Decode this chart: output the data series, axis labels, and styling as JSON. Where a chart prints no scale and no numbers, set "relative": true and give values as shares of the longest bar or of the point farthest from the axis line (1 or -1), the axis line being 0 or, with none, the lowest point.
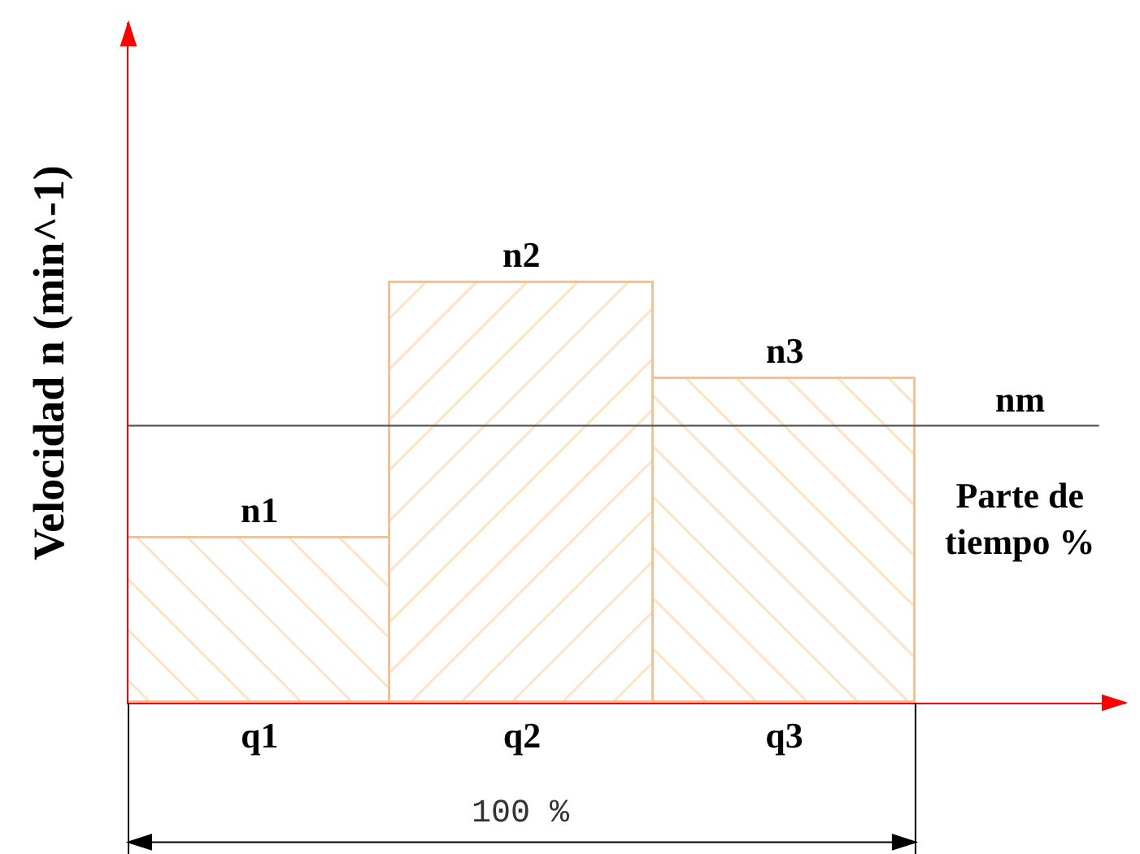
{
  "chart_data": {
    "type": "bar",
    "relative": true,
    "categories": [
      "q1",
      "q2",
      "q3"
    ],
    "values": [
      0.39,
      1,
      0.77
    ],
    "color": "#ffbf80",
    "xlabel": "Parte de tiempo %",
    "ylabel": "Velocidad n (min^-1)",
    "ref_lines": [
      {
        "axis": "y",
        "value": 0.66,
        "label": "nm",
        "color": "#555555"
      }
    ],
    "annotations": [
      {
        "text": "n1",
        "x": "q1",
        "y": 0.39
      },
      {
        "text": "n2",
        "x": "q2",
        "y": 1
      },
      {
        "text": "n3",
        "x": "q3",
        "y": 0.77
      },
      "100 %"
    ]
  }
}
